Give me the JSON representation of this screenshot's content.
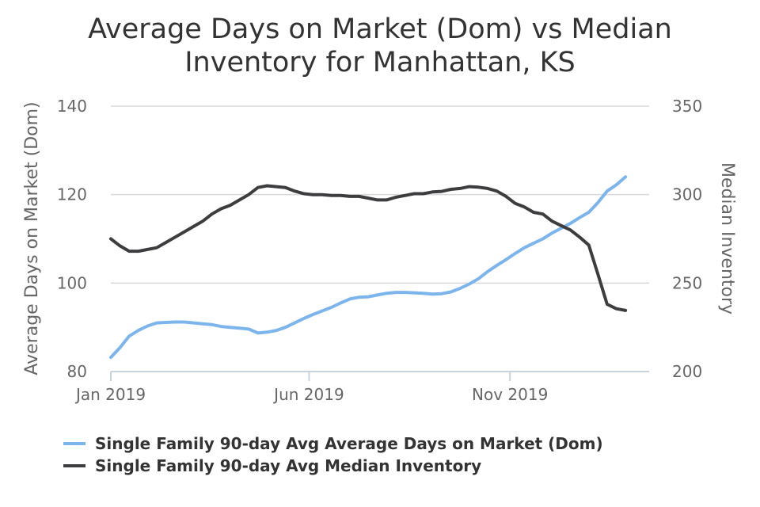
{
  "chart_data": {
    "type": "line",
    "title_lines": [
      "Average Days on Market (Dom) vs Median",
      "Inventory for Manhattan, KS"
    ],
    "left_axis": {
      "label": "Average Days on Market (Dom)",
      "ylim": [
        80,
        140
      ],
      "ticks": [
        80,
        100,
        120,
        140
      ],
      "tick_labels": [
        "80",
        "100",
        "120",
        "140"
      ]
    },
    "right_axis": {
      "label": "Median Inventory",
      "ylim": [
        200,
        350
      ],
      "ticks": [
        200,
        250,
        300,
        350
      ],
      "tick_labels": [
        "200",
        "250",
        "300",
        "350"
      ]
    },
    "x_axis": {
      "range": [
        "2019-01-01",
        "2020-02-15"
      ],
      "ticks": [
        "2019-01-01",
        "2019-06-01",
        "2019-11-01"
      ],
      "tick_labels": [
        "Jan 2019",
        "Jun 2019",
        "Nov 2019"
      ]
    },
    "grid": true,
    "legend_position": "bottom",
    "series": [
      {
        "name": "Single Family 90-day Avg Average Days on Market (Dom)",
        "axis": "left",
        "color": "#7cb5ec",
        "points": [
          [
            "2019-01-01",
            83.2
          ],
          [
            "2019-01-08",
            85.4
          ],
          [
            "2019-01-15",
            88.0
          ],
          [
            "2019-01-22",
            89.3
          ],
          [
            "2019-01-29",
            90.3
          ],
          [
            "2019-02-05",
            91.0
          ],
          [
            "2019-02-12",
            91.1
          ],
          [
            "2019-02-19",
            91.2
          ],
          [
            "2019-02-26",
            91.2
          ],
          [
            "2019-03-05",
            91.0
          ],
          [
            "2019-03-12",
            90.8
          ],
          [
            "2019-03-19",
            90.6
          ],
          [
            "2019-03-26",
            90.2
          ],
          [
            "2019-04-02",
            90.0
          ],
          [
            "2019-04-09",
            89.8
          ],
          [
            "2019-04-16",
            89.6
          ],
          [
            "2019-04-23",
            88.7
          ],
          [
            "2019-04-30",
            88.9
          ],
          [
            "2019-05-07",
            89.3
          ],
          [
            "2019-05-14",
            90.0
          ],
          [
            "2019-05-21",
            91.0
          ],
          [
            "2019-05-28",
            92.0
          ],
          [
            "2019-06-04",
            92.9
          ],
          [
            "2019-06-11",
            93.7
          ],
          [
            "2019-06-18",
            94.5
          ],
          [
            "2019-06-25",
            95.5
          ],
          [
            "2019-07-02",
            96.4
          ],
          [
            "2019-07-09",
            96.8
          ],
          [
            "2019-07-16",
            96.9
          ],
          [
            "2019-07-23",
            97.3
          ],
          [
            "2019-07-30",
            97.7
          ],
          [
            "2019-08-06",
            97.9
          ],
          [
            "2019-08-13",
            97.9
          ],
          [
            "2019-08-20",
            97.8
          ],
          [
            "2019-08-27",
            97.7
          ],
          [
            "2019-09-03",
            97.5
          ],
          [
            "2019-09-10",
            97.6
          ],
          [
            "2019-09-17",
            98.0
          ],
          [
            "2019-09-24",
            98.8
          ],
          [
            "2019-10-01",
            99.8
          ],
          [
            "2019-10-08",
            101.0
          ],
          [
            "2019-10-15",
            102.6
          ],
          [
            "2019-10-22",
            104.0
          ],
          [
            "2019-10-29",
            105.3
          ],
          [
            "2019-11-05",
            106.7
          ],
          [
            "2019-11-12",
            108.0
          ],
          [
            "2019-11-19",
            109.0
          ],
          [
            "2019-11-26",
            110.0
          ],
          [
            "2019-12-03",
            111.3
          ],
          [
            "2019-12-10",
            112.4
          ],
          [
            "2019-12-17",
            113.5
          ],
          [
            "2019-12-24",
            114.8
          ],
          [
            "2019-12-31",
            116.0
          ],
          [
            "2020-01-07",
            118.2
          ],
          [
            "2020-01-14",
            120.8
          ],
          [
            "2020-01-21",
            122.2
          ],
          [
            "2020-01-28",
            124.0
          ]
        ]
      },
      {
        "name": "Single Family 90-day Avg Median Inventory",
        "axis": "right",
        "color": "#3d3d3f",
        "points": [
          [
            "2019-01-01",
            275
          ],
          [
            "2019-01-08",
            271
          ],
          [
            "2019-01-15",
            268
          ],
          [
            "2019-01-22",
            268
          ],
          [
            "2019-01-29",
            269
          ],
          [
            "2019-02-05",
            270
          ],
          [
            "2019-02-12",
            273
          ],
          [
            "2019-02-19",
            276
          ],
          [
            "2019-02-26",
            279
          ],
          [
            "2019-03-05",
            282
          ],
          [
            "2019-03-12",
            285
          ],
          [
            "2019-03-19",
            289
          ],
          [
            "2019-03-26",
            292
          ],
          [
            "2019-04-02",
            294
          ],
          [
            "2019-04-09",
            297
          ],
          [
            "2019-04-16",
            300
          ],
          [
            "2019-04-23",
            304
          ],
          [
            "2019-04-30",
            305
          ],
          [
            "2019-05-07",
            304.5
          ],
          [
            "2019-05-14",
            304
          ],
          [
            "2019-05-21",
            302
          ],
          [
            "2019-05-28",
            300.5
          ],
          [
            "2019-06-04",
            300
          ],
          [
            "2019-06-11",
            300
          ],
          [
            "2019-06-18",
            299.5
          ],
          [
            "2019-06-25",
            299.5
          ],
          [
            "2019-07-02",
            299
          ],
          [
            "2019-07-09",
            299
          ],
          [
            "2019-07-16",
            298
          ],
          [
            "2019-07-23",
            297
          ],
          [
            "2019-07-30",
            297
          ],
          [
            "2019-08-06",
            298.5
          ],
          [
            "2019-08-13",
            299.5
          ],
          [
            "2019-08-20",
            300.5
          ],
          [
            "2019-08-27",
            300.5
          ],
          [
            "2019-09-03",
            301.5
          ],
          [
            "2019-09-10",
            301.8
          ],
          [
            "2019-09-17",
            303
          ],
          [
            "2019-09-24",
            303.5
          ],
          [
            "2019-10-01",
            304.5
          ],
          [
            "2019-10-08",
            304.2
          ],
          [
            "2019-10-15",
            303.5
          ],
          [
            "2019-10-22",
            302
          ],
          [
            "2019-10-29",
            299
          ],
          [
            "2019-11-05",
            295
          ],
          [
            "2019-11-12",
            293
          ],
          [
            "2019-11-19",
            290
          ],
          [
            "2019-11-26",
            289
          ],
          [
            "2019-12-03",
            285
          ],
          [
            "2019-12-10",
            282.5
          ],
          [
            "2019-12-17",
            280
          ],
          [
            "2019-12-24",
            276
          ],
          [
            "2019-12-31",
            271.5
          ],
          [
            "2020-01-07",
            255
          ],
          [
            "2020-01-14",
            238
          ],
          [
            "2020-01-21",
            235.5
          ],
          [
            "2020-01-28",
            234.5
          ]
        ]
      }
    ]
  }
}
